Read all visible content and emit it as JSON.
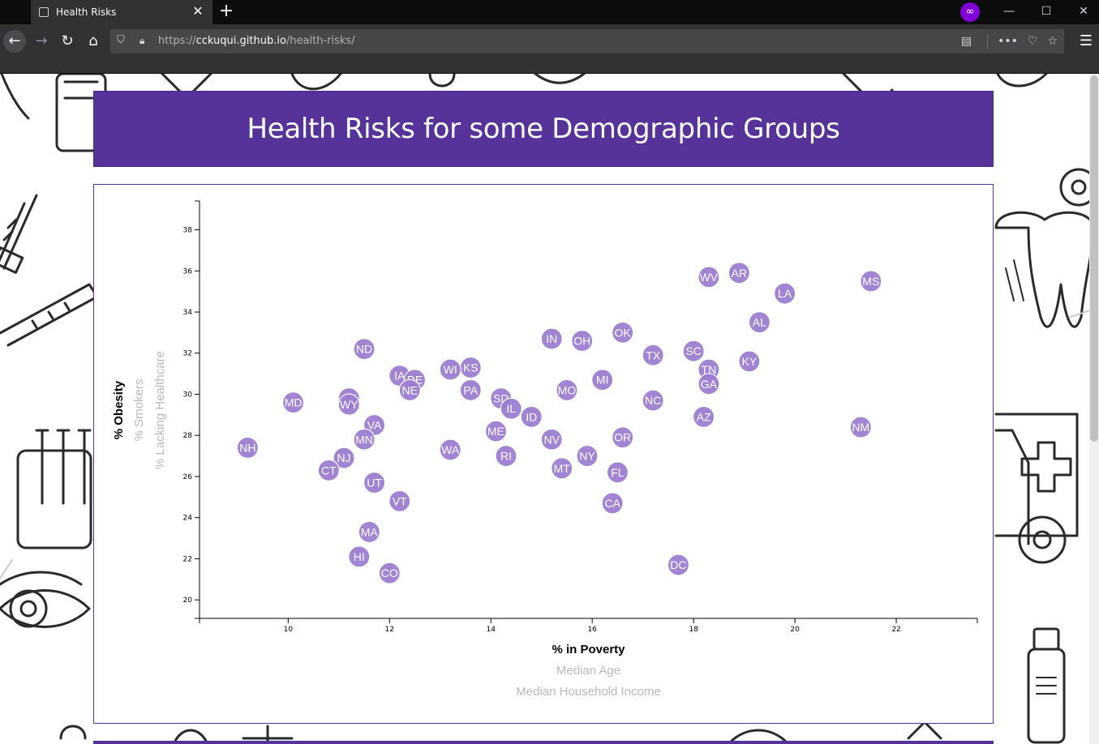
{
  "browser": {
    "tab_title": "Health Risks",
    "tab_close_glyph": "✕",
    "new_tab_glyph": "+",
    "url_prefix": "https://",
    "url_host": "cckuqui.github.io",
    "url_path": "/health-risks/",
    "private_icon": "mask-icon",
    "private_color": "#8000d7"
  },
  "page": {
    "title": "Health Risks for some Demographic Groups",
    "accent_color": "#553399",
    "circle_color": "#9c7ed0"
  },
  "chart_data": {
    "type": "scatter",
    "title": "",
    "xlabel": "% in Poverty",
    "ylabel": "% Obesity",
    "x_axis_options": [
      {
        "label": "% in Poverty",
        "active": true
      },
      {
        "label": "Median Age",
        "active": false
      },
      {
        "label": "Median Household Income",
        "active": false
      }
    ],
    "y_axis_options": [
      {
        "label": "% Obesity",
        "active": true
      },
      {
        "label": "% Smokers",
        "active": false
      },
      {
        "label": "% Lacking Healthcare",
        "active": false
      }
    ],
    "xlim": [
      8.25,
      23.6
    ],
    "ylim": [
      19.1,
      39.4
    ],
    "x_ticks": [
      10,
      12,
      14,
      16,
      18,
      20,
      22
    ],
    "y_ticks": [
      20,
      22,
      24,
      26,
      28,
      30,
      32,
      34,
      36,
      38
    ],
    "grid": false,
    "points": [
      {
        "abbr": "WV",
        "x": 18.3,
        "y": 35.7
      },
      {
        "abbr": "AR",
        "x": 18.9,
        "y": 35.9
      },
      {
        "abbr": "MS",
        "x": 21.5,
        "y": 35.5
      },
      {
        "abbr": "LA",
        "x": 19.8,
        "y": 34.9
      },
      {
        "abbr": "AL",
        "x": 19.3,
        "y": 33.5
      },
      {
        "abbr": "OK",
        "x": 16.6,
        "y": 33.0
      },
      {
        "abbr": "IN",
        "x": 15.2,
        "y": 32.7
      },
      {
        "abbr": "OH",
        "x": 15.8,
        "y": 32.6
      },
      {
        "abbr": "ND",
        "x": 11.5,
        "y": 32.2
      },
      {
        "abbr": "SC",
        "x": 18.0,
        "y": 32.1
      },
      {
        "abbr": "TX",
        "x": 17.2,
        "y": 31.9
      },
      {
        "abbr": "KY",
        "x": 19.1,
        "y": 31.6
      },
      {
        "abbr": "TN",
        "x": 18.3,
        "y": 31.2
      },
      {
        "abbr": "KS",
        "x": 13.6,
        "y": 31.3
      },
      {
        "abbr": "WI",
        "x": 13.2,
        "y": 31.2
      },
      {
        "abbr": "IA",
        "x": 12.2,
        "y": 30.9
      },
      {
        "abbr": "DE",
        "x": 12.5,
        "y": 30.7
      },
      {
        "abbr": "MI",
        "x": 16.2,
        "y": 30.7
      },
      {
        "abbr": "GA",
        "x": 18.3,
        "y": 30.5
      },
      {
        "abbr": "NE",
        "x": 12.4,
        "y": 30.2
      },
      {
        "abbr": "PA",
        "x": 13.6,
        "y": 30.2
      },
      {
        "abbr": "MO",
        "x": 15.5,
        "y": 30.2
      },
      {
        "abbr": "AK",
        "x": 11.2,
        "y": 29.8
      },
      {
        "abbr": "WY",
        "x": 11.2,
        "y": 29.5
      },
      {
        "abbr": "SD",
        "x": 14.2,
        "y": 29.8
      },
      {
        "abbr": "MD",
        "x": 10.1,
        "y": 29.6
      },
      {
        "abbr": "NC",
        "x": 17.2,
        "y": 29.7
      },
      {
        "abbr": "IL",
        "x": 14.4,
        "y": 29.3
      },
      {
        "abbr": "ID",
        "x": 14.8,
        "y": 28.9
      },
      {
        "abbr": "AZ",
        "x": 18.2,
        "y": 28.9
      },
      {
        "abbr": "VA",
        "x": 11.7,
        "y": 28.5
      },
      {
        "abbr": "NM",
        "x": 21.3,
        "y": 28.4
      },
      {
        "abbr": "ME",
        "x": 14.1,
        "y": 28.2
      },
      {
        "abbr": "OR",
        "x": 16.6,
        "y": 27.9
      },
      {
        "abbr": "NV",
        "x": 15.2,
        "y": 27.8
      },
      {
        "abbr": "MN",
        "x": 11.5,
        "y": 27.8
      },
      {
        "abbr": "NH",
        "x": 9.2,
        "y": 27.4
      },
      {
        "abbr": "WA",
        "x": 13.2,
        "y": 27.3
      },
      {
        "abbr": "RI",
        "x": 14.3,
        "y": 27.0
      },
      {
        "abbr": "NY",
        "x": 15.9,
        "y": 27.0
      },
      {
        "abbr": "NJ",
        "x": 11.1,
        "y": 26.9
      },
      {
        "abbr": "MT",
        "x": 15.4,
        "y": 26.4
      },
      {
        "abbr": "CT",
        "x": 10.8,
        "y": 26.3
      },
      {
        "abbr": "FL",
        "x": 16.5,
        "y": 26.2
      },
      {
        "abbr": "UT",
        "x": 11.7,
        "y": 25.7
      },
      {
        "abbr": "VT",
        "x": 12.2,
        "y": 24.8
      },
      {
        "abbr": "CA",
        "x": 16.4,
        "y": 24.7
      },
      {
        "abbr": "MA",
        "x": 11.6,
        "y": 23.3
      },
      {
        "abbr": "HI",
        "x": 11.4,
        "y": 22.1
      },
      {
        "abbr": "DC",
        "x": 17.7,
        "y": 21.7
      },
      {
        "abbr": "CO",
        "x": 12.0,
        "y": 21.3
      }
    ]
  }
}
